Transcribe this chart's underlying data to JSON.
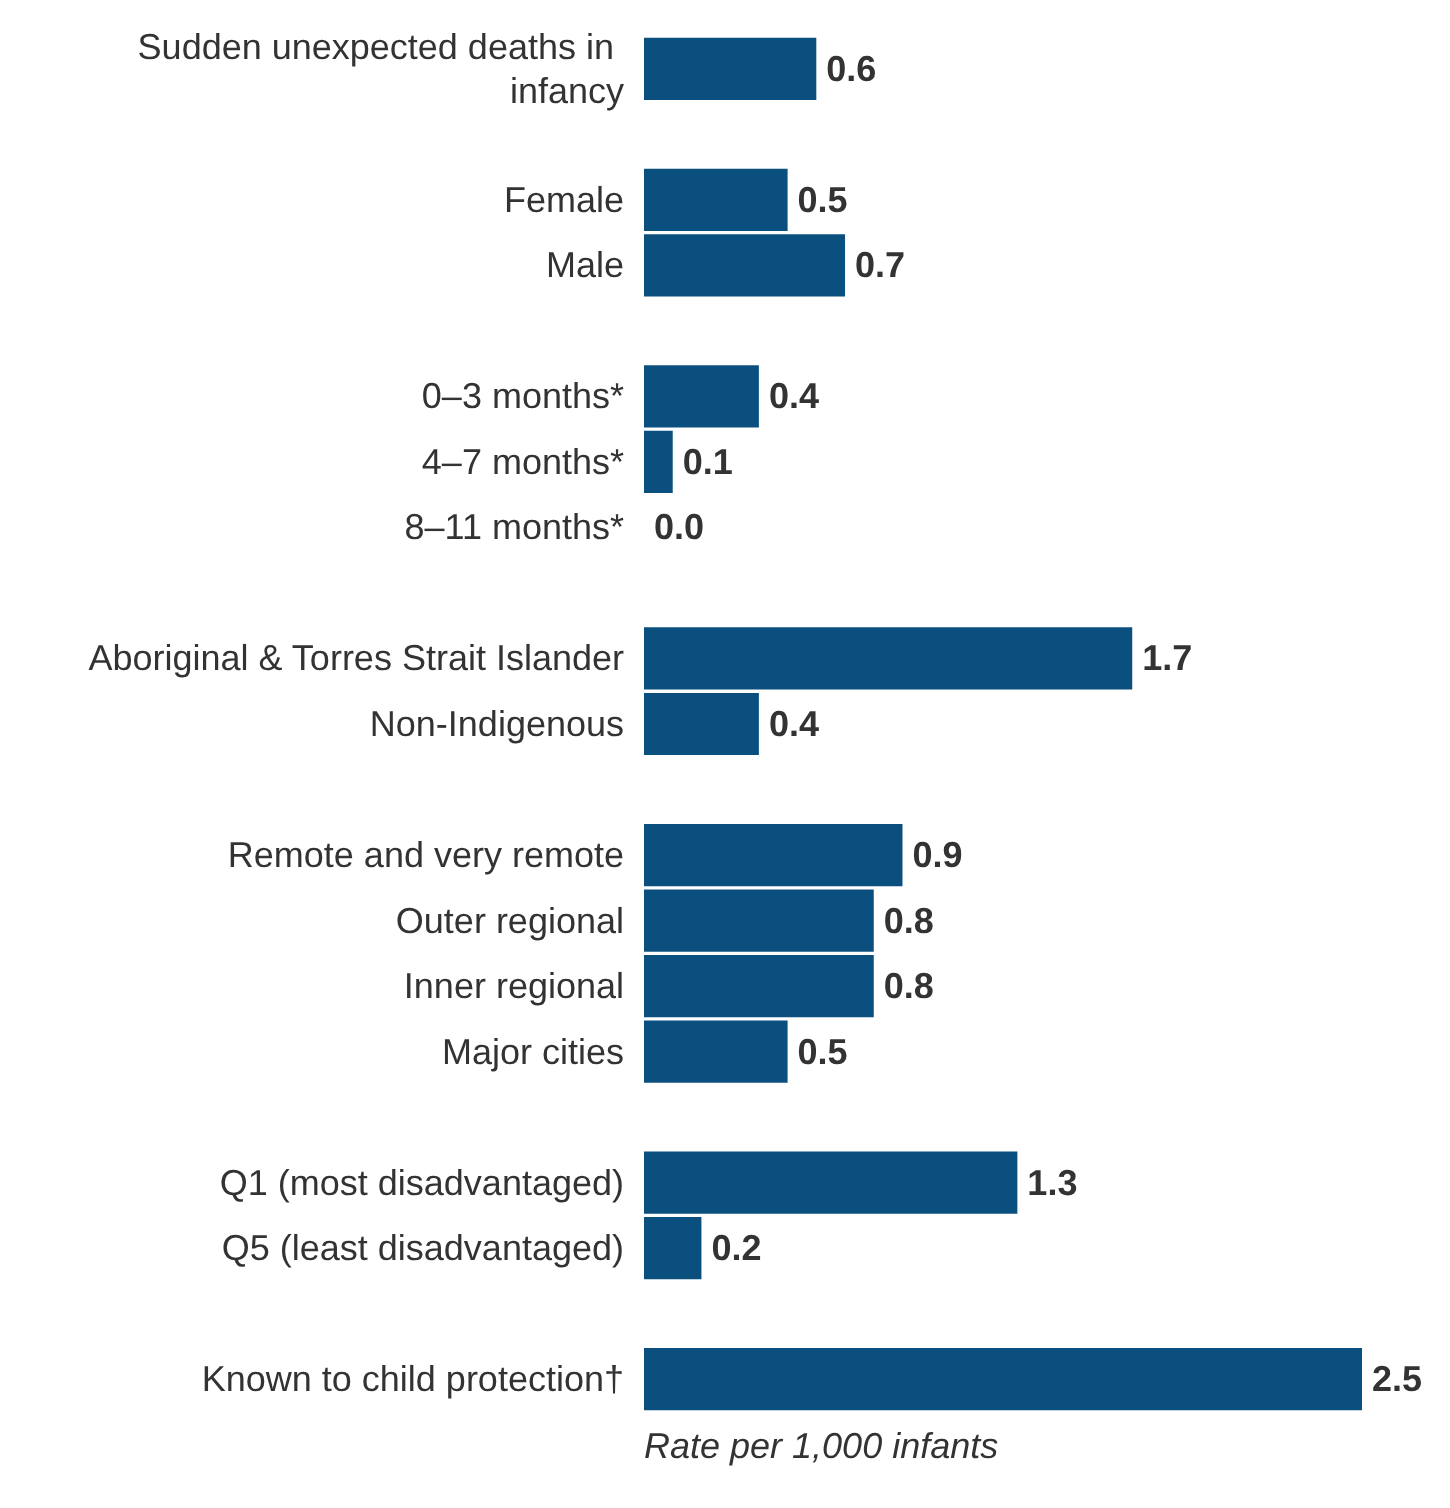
{
  "chart_data": {
    "type": "bar",
    "orientation": "horizontal",
    "xlabel": "Rate per 1,000 infants",
    "categories": [
      "Sudden unexpected deaths in infancy",
      null,
      "Female",
      "Male",
      null,
      "0–3 months*",
      "4–7 months*",
      "8–11 months*",
      null,
      "Aboriginal & Torres Strait Islander",
      "Non-Indigenous",
      null,
      "Remote and very remote",
      "Outer regional",
      "Inner regional",
      "Major cities",
      null,
      "Q1 (most disadvantaged)",
      "Q5 (least disadvantaged)",
      null,
      "Known to child protection†"
    ],
    "values": [
      0.6,
      null,
      0.5,
      0.7,
      null,
      0.4,
      0.1,
      0.0,
      null,
      1.7,
      0.4,
      null,
      0.9,
      0.8,
      0.8,
      0.5,
      null,
      1.3,
      0.2,
      null,
      2.5
    ],
    "value_labels": [
      "0.6",
      null,
      "0.5",
      "0.7",
      null,
      "0.4",
      "0.1",
      "0.0",
      null,
      "1.7",
      "0.4",
      null,
      "0.9",
      "0.8",
      "0.8",
      "0.5",
      null,
      "1.3",
      "0.2",
      null,
      "2.5"
    ],
    "color": "#0b4f7e",
    "xlim": [
      0,
      2.5
    ],
    "tick_labels": "y"
  }
}
